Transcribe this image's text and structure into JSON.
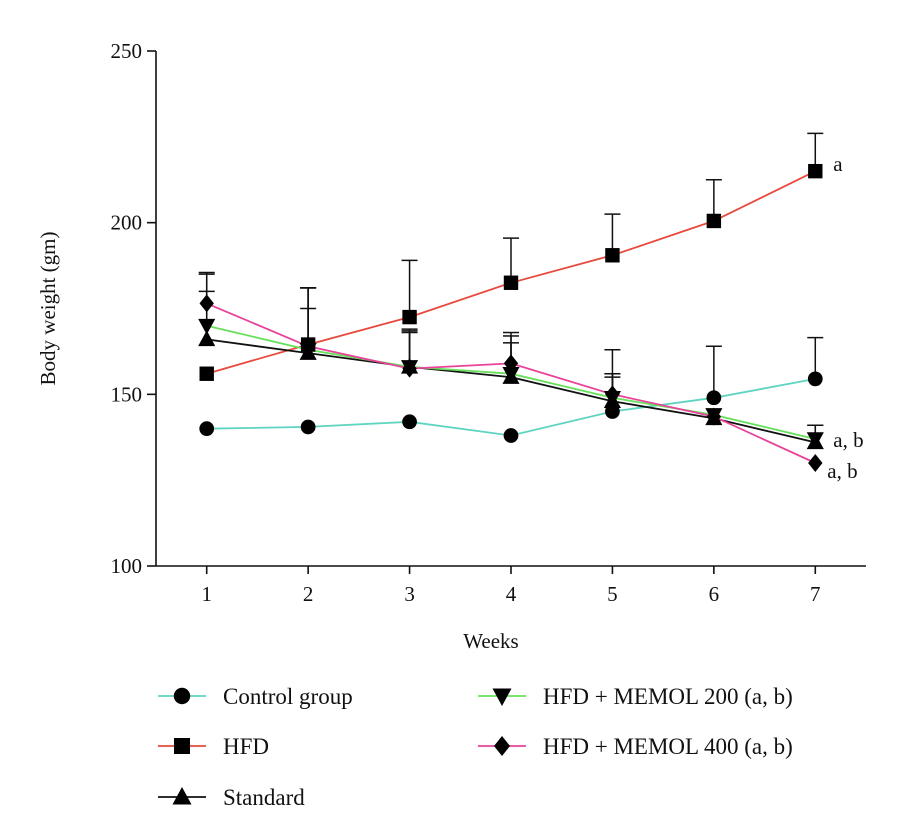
{
  "chart_data": {
    "type": "line",
    "xlabel": "Weeks",
    "ylabel": "Body weight (gm)",
    "x": [
      1,
      2,
      3,
      4,
      5,
      6,
      7
    ],
    "xlim": [
      0.5,
      7.5
    ],
    "ylim": [
      100,
      250
    ],
    "yticks": [
      100,
      150,
      200,
      250
    ],
    "grid": false,
    "legend_position": "bottom",
    "series": [
      {
        "name": "Control group",
        "marker": "circle",
        "color": "#5fd4c0",
        "values": [
          140,
          140.5,
          142,
          138,
          145,
          149,
          154.5
        ],
        "error": [
          0,
          0,
          0,
          0,
          18,
          15,
          12
        ]
      },
      {
        "name": "HFD",
        "marker": "square",
        "color": "#e8493c",
        "values": [
          156,
          164.5,
          172.5,
          182.5,
          190.5,
          200.5,
          215
        ],
        "error": [
          0,
          16.5,
          16.5,
          13,
          12,
          12,
          11
        ]
      },
      {
        "name": "Standard",
        "marker": "triangle-up",
        "color": "#111111",
        "values": [
          166,
          162,
          158,
          155,
          148,
          143,
          136
        ],
        "error": [
          14,
          13,
          10,
          10,
          7,
          0,
          5
        ]
      },
      {
        "name": "HFD + MEMOL 200 (a, b)",
        "marker": "triangle-down",
        "color": "#66e05a",
        "values": [
          170,
          163,
          158,
          156,
          149,
          144,
          137
        ],
        "error": [
          15,
          18,
          11,
          11,
          7,
          0,
          4
        ]
      },
      {
        "name": "HFD + MEMOL 400 (a, b)",
        "marker": "diamond",
        "color": "#e8429a",
        "values": [
          176.5,
          164,
          157.5,
          159,
          150,
          143.5,
          130
        ],
        "error": [
          9,
          17,
          11,
          9,
          6,
          0,
          0
        ]
      }
    ],
    "annotations": [
      {
        "series": 1,
        "x": 7,
        "text": "a"
      },
      {
        "series": 3,
        "x": 7,
        "text": "a, b"
      },
      {
        "series": 4,
        "x": 7,
        "text": "a, b"
      }
    ]
  }
}
